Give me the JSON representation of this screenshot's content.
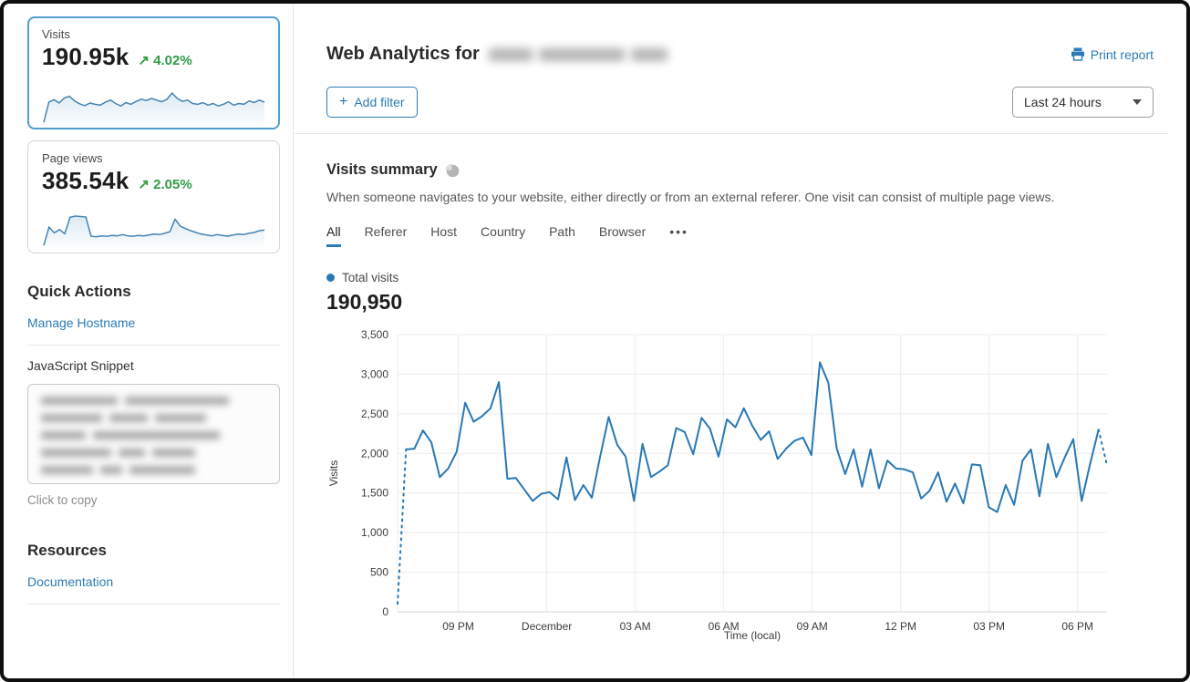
{
  "sidebar": {
    "cards": [
      {
        "label": "Visits",
        "value": "190.95k",
        "trend_arrow": "↗",
        "change": "4.02%",
        "selected": true
      },
      {
        "label": "Page views",
        "value": "385.54k",
        "trend_arrow": "↗",
        "change": "2.05%",
        "selected": false
      }
    ],
    "quick_actions": {
      "title": "Quick Actions",
      "manage_hostname_label": "Manage Hostname",
      "snippet_label": "JavaScript Snippet",
      "copy_hint": "Click to copy"
    },
    "resources": {
      "title": "Resources",
      "documentation_label": "Documentation"
    }
  },
  "header": {
    "title": "Web Analytics for",
    "print_label": "Print report",
    "print_icon": "printer-icon"
  },
  "toolbar": {
    "add_filter_plus": "+",
    "add_filter_label": "Add filter",
    "time_range_value": "Last 24 hours",
    "caret_icon": "chevron-down-icon"
  },
  "summary": {
    "title": "Visits summary",
    "help_icon": "pie-chart-icon",
    "description": "When someone navigates to your website, either directly or from an external referer. One visit can consist of multiple page views.",
    "legend_label": "Total visits",
    "total": "190,950"
  },
  "tabs": [
    {
      "label": "All",
      "active": true
    },
    {
      "label": "Referer",
      "active": false
    },
    {
      "label": "Host",
      "active": false
    },
    {
      "label": "Country",
      "active": false
    },
    {
      "label": "Path",
      "active": false
    },
    {
      "label": "Browser",
      "active": false
    },
    {
      "label": "•••",
      "active": false
    }
  ],
  "colors": {
    "line_blue": "#2878b5",
    "link_blue": "#2c7bb5",
    "positive_green": "#2e9e44",
    "selected_card_border": "#4da0d0"
  },
  "chart_data": [
    {
      "name": "visits-summary-line",
      "type": "line",
      "title": "Total visits",
      "xlabel": "Time (local)",
      "ylabel": "Visits",
      "ylim": [
        0,
        3500
      ],
      "y_tick_step": 500,
      "y_ticks": [
        "0",
        "500",
        "1,000",
        "1,500",
        "2,000",
        "2,500",
        "3,000",
        "3,500"
      ],
      "x_ticks": [
        "09 PM",
        "December",
        "03 AM",
        "06 AM",
        "09 AM",
        "12 PM",
        "03 PM",
        "06 PM"
      ],
      "grid": true,
      "legend_position": "top-left",
      "series": [
        {
          "name": "Total visits",
          "color": "#2878b5",
          "dashed_first_segment": true,
          "dashed_last_segment": true,
          "values": [
            100,
            2050,
            2060,
            2290,
            2140,
            1700,
            1810,
            2020,
            2640,
            2400,
            2470,
            2570,
            2900,
            1680,
            1690,
            1545,
            1400,
            1490,
            1510,
            1420,
            1950,
            1410,
            1600,
            1440,
            1970,
            2460,
            2110,
            1960,
            1400,
            2120,
            1700,
            1770,
            1850,
            2320,
            2270,
            1990,
            2450,
            2310,
            1960,
            2430,
            2330,
            2570,
            2350,
            2170,
            2280,
            1930,
            2060,
            2160,
            2200,
            1980,
            3150,
            2890,
            2060,
            1740,
            2050,
            1580,
            2050,
            1560,
            1910,
            1810,
            1800,
            1760,
            1430,
            1530,
            1760,
            1390,
            1620,
            1370,
            1860,
            1850,
            1320,
            1260,
            1600,
            1350,
            1910,
            2050,
            1460,
            2120,
            1700,
            1950,
            2180,
            1400,
            1870,
            2300,
            1850
          ]
        }
      ]
    },
    {
      "name": "visits-sparkline",
      "type": "area",
      "values": [
        4,
        52,
        58,
        50,
        62,
        66,
        55,
        48,
        44,
        50,
        47,
        45,
        52,
        57,
        49,
        43,
        51,
        47,
        54,
        59,
        56,
        61,
        57,
        53,
        59,
        74,
        61,
        54,
        57,
        49,
        47,
        51,
        45,
        49,
        43,
        47,
        53,
        45,
        49,
        47,
        55,
        51,
        57,
        52
      ]
    },
    {
      "name": "pageviews-sparkline",
      "type": "area",
      "values": [
        6,
        50,
        36,
        44,
        34,
        73,
        76,
        75,
        74,
        28,
        27,
        29,
        28,
        30,
        29,
        32,
        29,
        28,
        30,
        29,
        31,
        33,
        32,
        35,
        39,
        69,
        52,
        46,
        41,
        37,
        33,
        31,
        29,
        32,
        30,
        28,
        31,
        33,
        32,
        35,
        37,
        41,
        43
      ]
    }
  ]
}
